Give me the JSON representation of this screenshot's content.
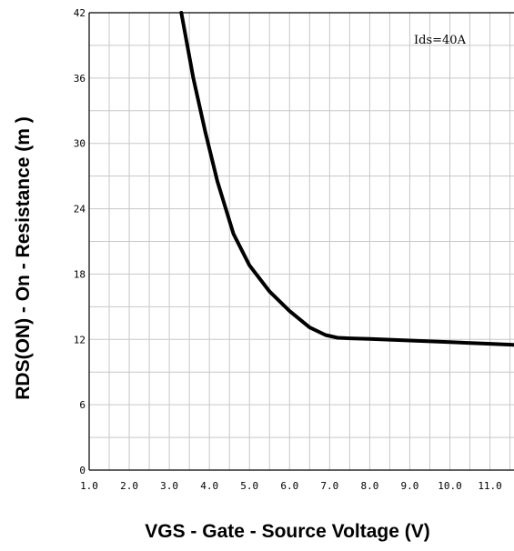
{
  "chart_data": {
    "type": "line",
    "title": "",
    "xlabel": "VGS - Gate - Source Voltage (V)",
    "ylabel": "RDS(ON) - On - Resistance (m   )",
    "xlim": [
      1.0,
      11.6
    ],
    "ylim": [
      0,
      42
    ],
    "grid": true,
    "x_ticks": [
      {
        "value": 1.0,
        "label": "1.0"
      },
      {
        "value": 2.0,
        "label": "2.0"
      },
      {
        "value": 3.0,
        "label": "3.0"
      },
      {
        "value": 4.0,
        "label": "4.0"
      },
      {
        "value": 5.0,
        "label": "5.0"
      },
      {
        "value": 6.0,
        "label": "6.0"
      },
      {
        "value": 7.0,
        "label": "7.0"
      },
      {
        "value": 8.0,
        "label": "8.0"
      },
      {
        "value": 9.0,
        "label": "9.0"
      },
      {
        "value": 10.0,
        "label": "10.0"
      },
      {
        "value": 11.0,
        "label": "11.0"
      }
    ],
    "y_ticks": [
      {
        "value": 0,
        "label": "0"
      },
      {
        "value": 6,
        "label": "6"
      },
      {
        "value": 12,
        "label": "12"
      },
      {
        "value": 18,
        "label": "18"
      },
      {
        "value": 24,
        "label": "24"
      },
      {
        "value": 30,
        "label": "30"
      },
      {
        "value": 36,
        "label": "36"
      },
      {
        "value": 42,
        "label": "42"
      }
    ],
    "annotation": "Ids=40A",
    "series": [
      {
        "color": "#000000",
        "x": [
          3.3,
          3.6,
          3.9,
          4.2,
          4.6,
          5.0,
          5.5,
          6.0,
          6.5,
          6.9,
          7.2,
          7.5,
          8.0,
          9.0,
          10.0,
          11.0,
          11.6
        ],
        "y": [
          42.0,
          36.0,
          31.0,
          26.5,
          21.7,
          18.8,
          16.4,
          14.6,
          13.1,
          12.4,
          12.15,
          12.1,
          12.05,
          11.9,
          11.75,
          11.6,
          11.5
        ]
      }
    ]
  }
}
